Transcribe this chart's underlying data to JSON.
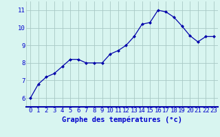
{
  "x": [
    0,
    1,
    2,
    3,
    4,
    5,
    6,
    7,
    8,
    9,
    10,
    11,
    12,
    13,
    14,
    15,
    16,
    17,
    18,
    19,
    20,
    21,
    22,
    23
  ],
  "y": [
    6.0,
    6.8,
    7.2,
    7.4,
    7.8,
    8.2,
    8.2,
    8.0,
    8.0,
    8.0,
    8.5,
    8.7,
    9.0,
    9.5,
    10.2,
    10.3,
    11.0,
    10.9,
    10.6,
    10.1,
    9.55,
    9.2,
    9.5,
    9.5
  ],
  "line_color": "#0000aa",
  "marker": "D",
  "marker_size": 2.0,
  "bg_color": "#d8f5f0",
  "grid_color": "#a8c8c4",
  "xlabel": "Graphe des températures (°c)",
  "xlabel_color": "#0000cc",
  "xlabel_fontsize": 7.5,
  "tick_color": "#0000cc",
  "tick_fontsize": 6.5,
  "ylim": [
    5.5,
    11.5
  ],
  "xlim": [
    -0.5,
    23.5
  ],
  "yticks": [
    6,
    7,
    8,
    9,
    10,
    11
  ],
  "xticks": [
    0,
    1,
    2,
    3,
    4,
    5,
    6,
    7,
    8,
    9,
    10,
    11,
    12,
    13,
    14,
    15,
    16,
    17,
    18,
    19,
    20,
    21,
    22,
    23
  ]
}
